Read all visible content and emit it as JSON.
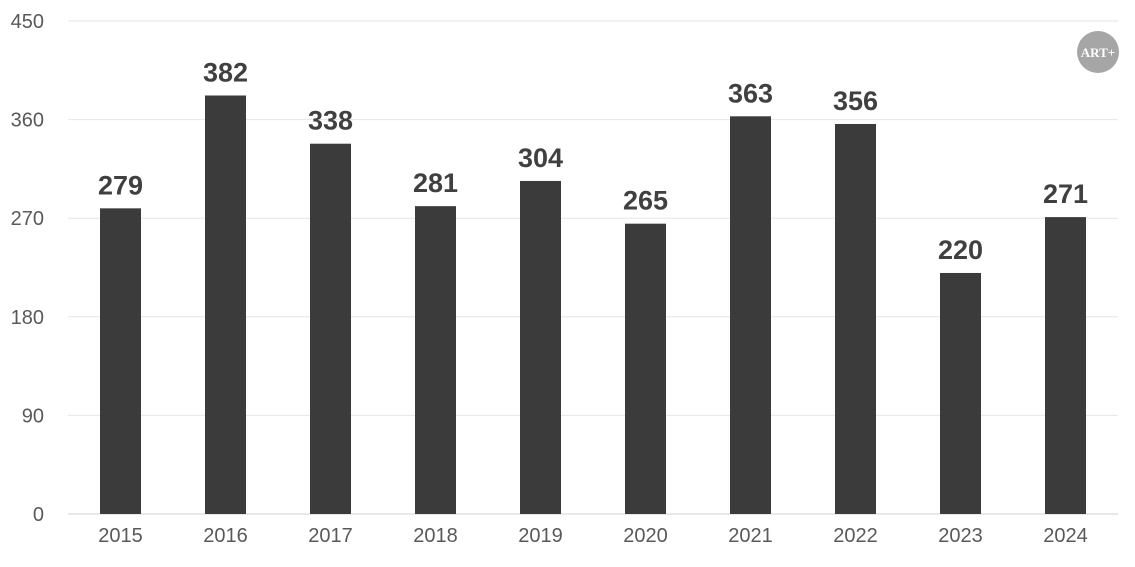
{
  "chart_data": {
    "type": "bar",
    "categories": [
      "2015",
      "2016",
      "2017",
      "2018",
      "2019",
      "2020",
      "2021",
      "2022",
      "2023",
      "2024"
    ],
    "values": [
      279,
      382,
      338,
      281,
      304,
      265,
      363,
      356,
      220,
      271
    ],
    "ylim": [
      0,
      450
    ],
    "yticks": [
      0,
      90,
      180,
      270,
      360,
      450
    ],
    "title": "",
    "xlabel": "",
    "ylabel": "",
    "grid": true,
    "bar_color": "#3b3b3b"
  },
  "logo": {
    "text": "ART+",
    "color": "#a6a6a6"
  }
}
